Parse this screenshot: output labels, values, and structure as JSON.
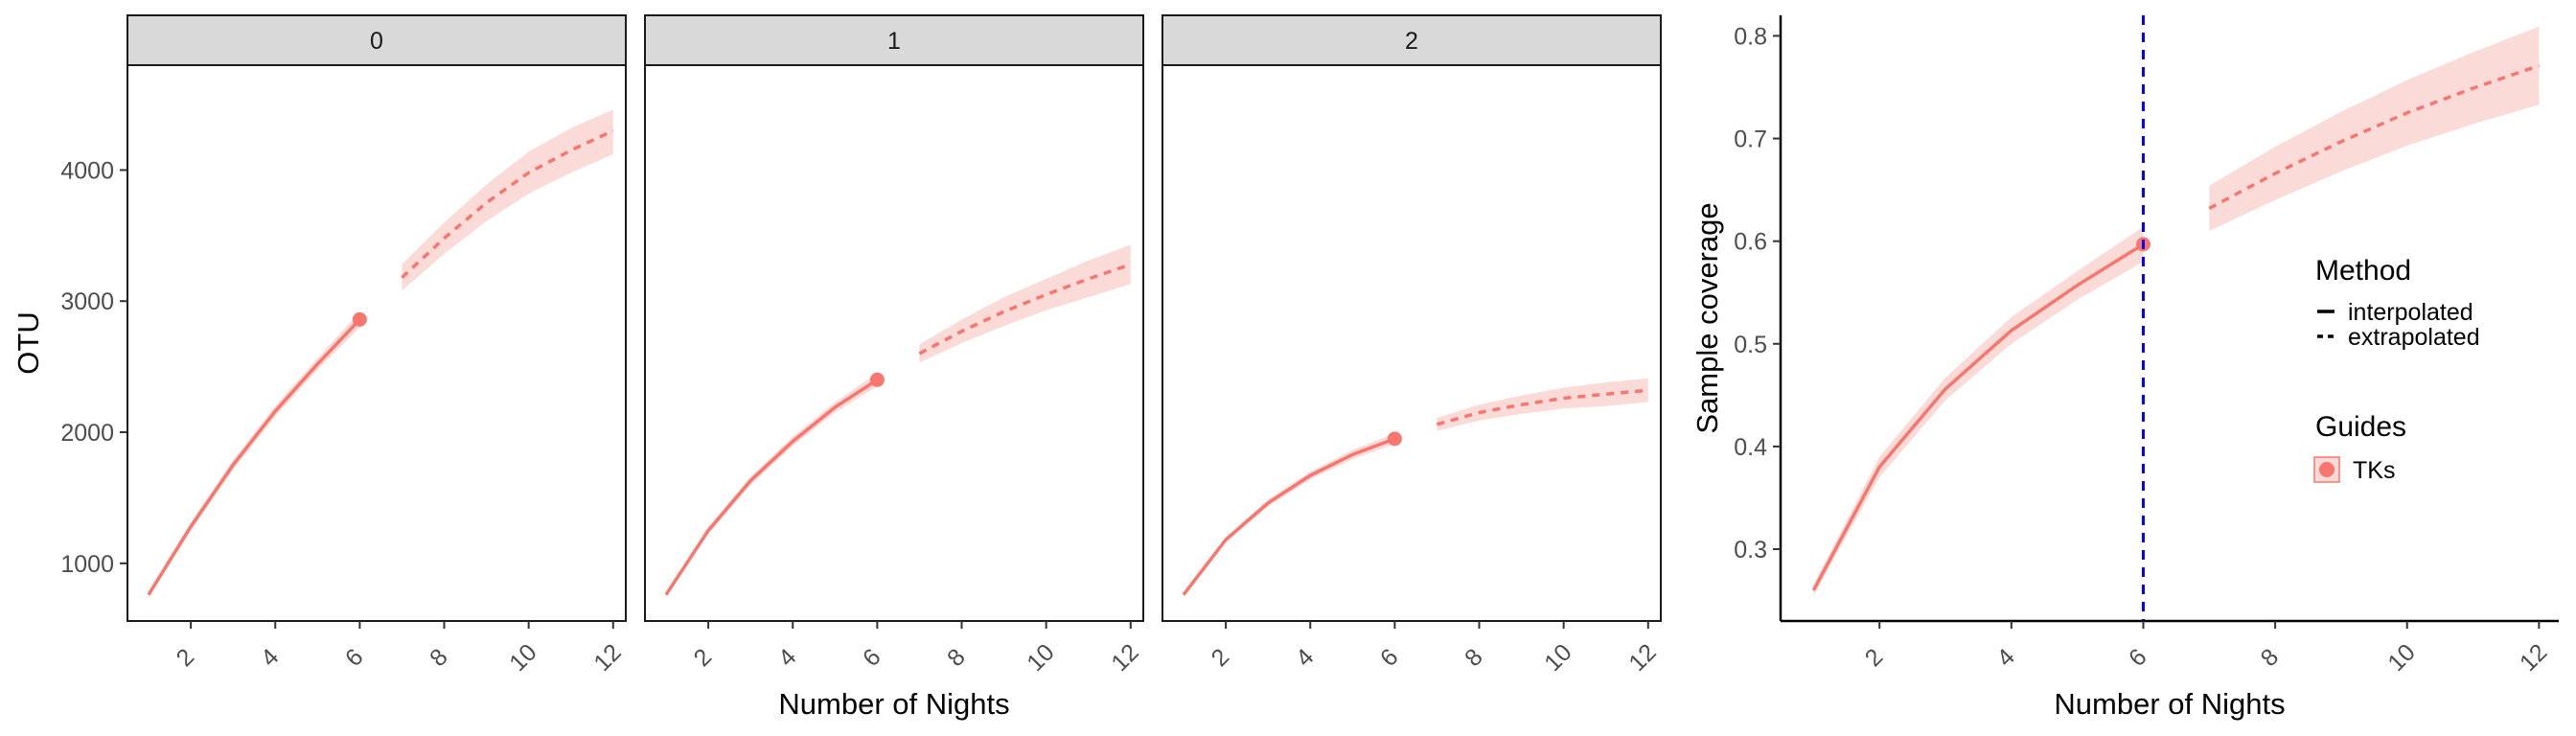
{
  "chart_data": [
    {
      "type": "line",
      "title": "",
      "xlabel": "Number of Nights",
      "ylabel": "OTU",
      "facets": [
        "0",
        "1",
        "2"
      ],
      "xlim": [
        0.5,
        12.3
      ],
      "ylim": [
        560,
        4800
      ],
      "x_ticks": [
        2,
        4,
        6,
        8,
        10,
        12
      ],
      "y_ticks": [
        1000,
        2000,
        3000,
        4000
      ],
      "color": "#F8766D",
      "band_color": "#FADBD8",
      "series": [
        {
          "facet": "0",
          "observed": {
            "x": 6,
            "y": 2860
          },
          "interpolated": {
            "x": [
              1,
              2,
              3,
              4,
              5,
              6
            ],
            "y": [
              760,
              1280,
              1750,
              2160,
              2520,
              2860
            ]
          },
          "interpolated_lower": [
            740,
            1250,
            1715,
            2120,
            2475,
            2800
          ],
          "interpolated_upper": [
            780,
            1310,
            1785,
            2200,
            2565,
            2920
          ],
          "extrapolated": {
            "x": [
              7,
              8,
              9,
              10,
              11,
              12
            ],
            "y": [
              3180,
              3480,
              3750,
              3980,
              4150,
              4300
            ]
          },
          "extrapolated_lower": [
            3080,
            3360,
            3610,
            3820,
            3980,
            4120
          ],
          "extrapolated_upper": [
            3280,
            3600,
            3890,
            4140,
            4320,
            4460
          ]
        },
        {
          "facet": "1",
          "observed": {
            "x": 6,
            "y": 2400
          },
          "interpolated": {
            "x": [
              1,
              2,
              3,
              4,
              5,
              6
            ],
            "y": [
              760,
              1250,
              1630,
              1930,
              2190,
              2400
            ]
          },
          "interpolated_lower": [
            745,
            1225,
            1600,
            1895,
            2150,
            2350
          ],
          "interpolated_upper": [
            775,
            1275,
            1660,
            1965,
            2230,
            2450
          ],
          "extrapolated": {
            "x": [
              7,
              8,
              9,
              10,
              11,
              12
            ],
            "y": [
              2600,
              2770,
              2920,
              3050,
              3170,
              3280
            ]
          },
          "extrapolated_lower": [
            2530,
            2680,
            2810,
            2930,
            3030,
            3130
          ],
          "extrapolated_upper": [
            2670,
            2860,
            3030,
            3170,
            3310,
            3430
          ]
        },
        {
          "facet": "2",
          "observed": {
            "x": 6,
            "y": 1950
          },
          "interpolated": {
            "x": [
              1,
              2,
              3,
              4,
              5,
              6
            ],
            "y": [
              760,
              1180,
              1460,
              1670,
              1830,
              1950
            ]
          },
          "interpolated_lower": [
            745,
            1160,
            1435,
            1640,
            1795,
            1910
          ],
          "interpolated_upper": [
            775,
            1200,
            1485,
            1700,
            1865,
            1990
          ],
          "extrapolated": {
            "x": [
              7,
              8,
              9,
              10,
              11,
              12
            ],
            "y": [
              2060,
              2150,
              2210,
              2260,
              2290,
              2320
            ]
          },
          "extrapolated_lower": [
            2010,
            2090,
            2140,
            2180,
            2200,
            2230
          ],
          "extrapolated_upper": [
            2110,
            2210,
            2280,
            2340,
            2380,
            2410
          ]
        }
      ]
    },
    {
      "type": "line",
      "title": "",
      "xlabel": "Number of Nights",
      "ylabel": "Sample coverage",
      "xlim": [
        0.5,
        12.3
      ],
      "ylim": [
        0.23,
        0.82
      ],
      "x_ticks": [
        2,
        4,
        6,
        8,
        10,
        12
      ],
      "y_ticks": [
        0.3,
        0.4,
        0.5,
        0.6,
        0.7,
        0.8
      ],
      "y_tick_labels": [
        "0.3",
        "0.4",
        "0.5",
        "0.6",
        "0.7",
        "0.8"
      ],
      "vline": {
        "x": 6,
        "color": "#0000FF",
        "style": "dashed"
      },
      "color": "#F8766D",
      "band_color": "#FADBD8",
      "series": [
        {
          "name": "TKs",
          "observed": {
            "x": 6,
            "y": 0.597
          },
          "interpolated": {
            "x": [
              1,
              2,
              3,
              4,
              5,
              6
            ],
            "y": [
              0.26,
              0.38,
              0.456,
              0.513,
              0.557,
              0.597
            ]
          },
          "interpolated_lower": [
            0.255,
            0.37,
            0.445,
            0.5,
            0.543,
            0.58
          ],
          "interpolated_upper": [
            0.265,
            0.39,
            0.467,
            0.526,
            0.571,
            0.614
          ],
          "extrapolated": {
            "x": [
              7,
              8,
              9,
              10,
              11,
              12
            ],
            "y": [
              0.632,
              0.666,
              0.697,
              0.725,
              0.749,
              0.771
            ]
          },
          "extrapolated_lower": [
            0.61,
            0.64,
            0.668,
            0.693,
            0.714,
            0.733
          ],
          "extrapolated_upper": [
            0.654,
            0.692,
            0.726,
            0.757,
            0.784,
            0.809
          ]
        }
      ],
      "legend": {
        "placement": "right",
        "method_title": "Method",
        "method_items": [
          "interpolated",
          "extrapolated"
        ],
        "guides_title": "Guides",
        "guides_items": [
          "TKs"
        ]
      }
    }
  ]
}
